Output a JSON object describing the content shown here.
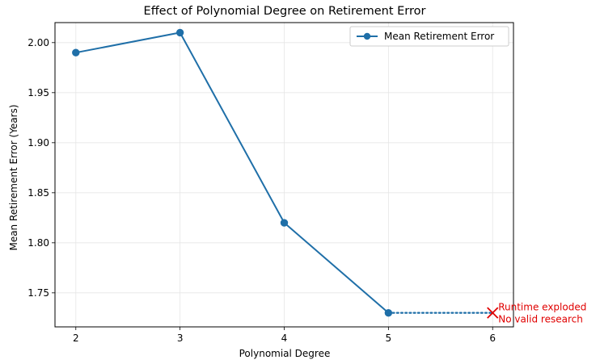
{
  "chart_data": {
    "type": "line",
    "title": "Effect of Polynomial Degree on Retirement Error",
    "xlabel": "Polynomial Degree",
    "ylabel": "Mean Retirement Error (Years)",
    "xlim": [
      1.8,
      6.2
    ],
    "ylim": [
      1.716,
      2.02
    ],
    "x_ticks": [
      2,
      3,
      4,
      5,
      6
    ],
    "y_ticks": [
      1.75,
      1.8,
      1.85,
      1.9,
      1.95,
      2.0
    ],
    "x_tick_labels": [
      "2",
      "3",
      "4",
      "5",
      "6"
    ],
    "y_tick_labels": [
      "1.75",
      "1.80",
      "1.85",
      "1.90",
      "1.95",
      "2.00"
    ],
    "grid": true,
    "legend_position": "top-right",
    "series": [
      {
        "name": "Mean Retirement Error",
        "color": "#1f6fa8",
        "x": [
          2,
          3,
          4,
          5
        ],
        "y": [
          1.99,
          2.01,
          1.82,
          1.73
        ]
      }
    ],
    "extension": {
      "style": "dotted",
      "color": "#1f6fa8",
      "x": [
        5,
        6
      ],
      "y": [
        1.73,
        1.73
      ]
    },
    "failure_marker": {
      "x": 6,
      "y": 1.73,
      "color": "#e00000",
      "annotation_lines": [
        "Runtime exploded",
        "No valid research"
      ]
    }
  }
}
